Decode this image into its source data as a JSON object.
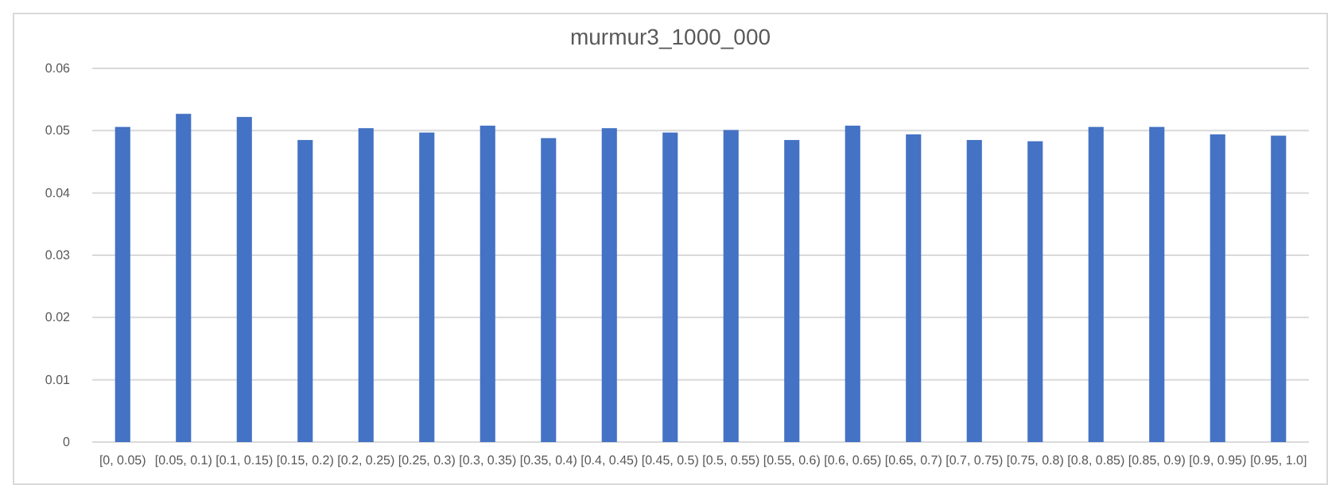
{
  "chart_data": {
    "type": "bar",
    "title": "murmur3_1000_000",
    "categories": [
      "[0, 0.05)",
      "[0.05, 0.1)",
      "[0.1, 0.15)",
      "[0.15, 0.2)",
      "[0.2, 0.25)",
      "[0.25, 0.3)",
      "[0.3, 0.35)",
      "[0.35, 0.4)",
      "[0.4, 0.45)",
      "[0.45, 0.5)",
      "[0.5, 0.55)",
      "[0.55, 0.6)",
      "[0.6, 0.65)",
      "[0.65, 0.7)",
      "[0.7, 0.75)",
      "[0.75, 0.8)",
      "[0.8, 0.85)",
      "[0.85, 0.9)",
      "[0.9, 0.95)",
      "[0.95, 1.0]"
    ],
    "values": [
      0.0506,
      0.0527,
      0.0522,
      0.0485,
      0.0504,
      0.0497,
      0.0508,
      0.0488,
      0.0504,
      0.0497,
      0.0501,
      0.0485,
      0.0508,
      0.0494,
      0.0485,
      0.0483,
      0.0506,
      0.0506,
      0.0494,
      0.0492
    ],
    "color": "#4472c4",
    "ylim": [
      0,
      0.06
    ],
    "yticks": [
      {
        "value": 0,
        "label": "0"
      },
      {
        "value": 0.01,
        "label": "0.01"
      },
      {
        "value": 0.02,
        "label": "0.02"
      },
      {
        "value": 0.03,
        "label": "0.03"
      },
      {
        "value": 0.04,
        "label": "0.04"
      },
      {
        "value": 0.05,
        "label": "0.05"
      },
      {
        "value": 0.06,
        "label": "0.06"
      }
    ],
    "grid": "y"
  }
}
